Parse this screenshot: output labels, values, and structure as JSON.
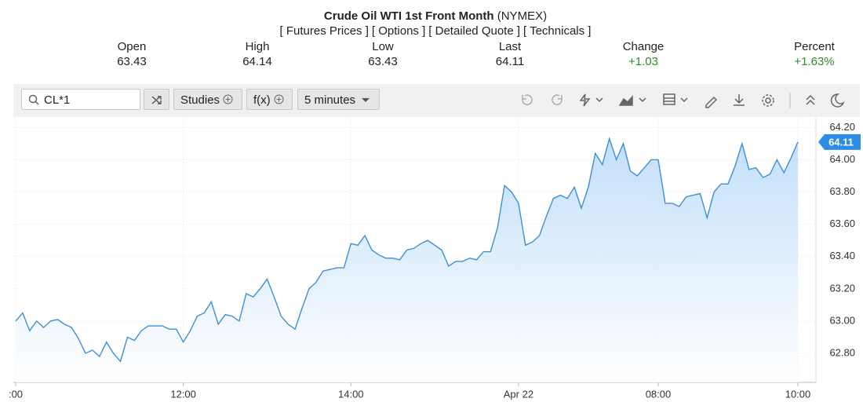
{
  "header": {
    "title": "Crude Oil WTI 1st Front Month",
    "exchange": "(NYMEX)",
    "links": [
      "[ Futures Prices ]",
      "[ Options ]",
      "[ Detailed Quote ]",
      "[ Technicals ]"
    ],
    "quote": [
      {
        "label": "Open",
        "value": "63.43"
      },
      {
        "label": "High",
        "value": "64.14"
      },
      {
        "label": "Low",
        "value": "63.43"
      },
      {
        "label": "Last",
        "value": "64.11"
      },
      {
        "label": "Change",
        "value": "+1.03"
      },
      {
        "label": "Percent",
        "value": "+1.63%"
      }
    ]
  },
  "toolbar": {
    "symbol": "CL*1",
    "studies": "Studies",
    "fx": "f(x)",
    "interval": "5 minutes"
  },
  "chart_data": {
    "type": "area",
    "color": "#3d8fd6",
    "categories": [
      ":00",
      null,
      null,
      null,
      null,
      null,
      null,
      null,
      null,
      null,
      null,
      null,
      null,
      null,
      null,
      null,
      null,
      null,
      null,
      null,
      null,
      null,
      null,
      null,
      "12:00",
      null,
      null,
      null,
      null,
      null,
      null,
      null,
      null,
      null,
      null,
      null,
      null,
      null,
      null,
      null,
      null,
      null,
      null,
      null,
      null,
      null,
      null,
      null,
      "14:00",
      null,
      null,
      null,
      null,
      null,
      null,
      null,
      null,
      null,
      null,
      null,
      null,
      null,
      null,
      null,
      null,
      null,
      null,
      null,
      null,
      null,
      null,
      null,
      "Apr 22",
      null,
      null,
      null,
      null,
      null,
      null,
      null,
      null,
      null,
      null,
      null,
      null,
      null,
      null,
      null,
      null,
      null,
      null,
      null,
      "08:00",
      null,
      null,
      null,
      null,
      null,
      null,
      null,
      null,
      null,
      null,
      null,
      null,
      null,
      null,
      null,
      null,
      null,
      null,
      null,
      "10:00"
    ],
    "values": [
      63.0,
      63.05,
      62.94,
      63.0,
      62.96,
      63.0,
      63.01,
      62.98,
      62.96,
      62.89,
      62.8,
      62.82,
      62.78,
      62.87,
      62.8,
      62.75,
      62.9,
      62.88,
      62.94,
      62.97,
      62.97,
      62.97,
      62.95,
      62.95,
      62.87,
      62.94,
      63.03,
      63.05,
      63.12,
      62.98,
      63.04,
      63.03,
      63.0,
      63.17,
      63.15,
      63.2,
      63.26,
      63.15,
      63.03,
      62.98,
      62.95,
      63.08,
      63.2,
      63.24,
      63.31,
      63.32,
      63.33,
      63.33,
      63.48,
      63.47,
      63.53,
      63.44,
      63.41,
      63.39,
      63.39,
      63.38,
      63.44,
      63.45,
      63.48,
      63.5,
      63.47,
      63.44,
      63.34,
      63.37,
      63.37,
      63.39,
      63.38,
      63.43,
      63.43,
      63.58,
      63.84,
      63.8,
      63.73,
      63.47,
      63.49,
      63.53,
      63.65,
      63.76,
      63.78,
      63.76,
      63.83,
      63.7,
      63.83,
      64.04,
      63.97,
      64.13,
      64.0,
      64.1,
      63.93,
      63.9,
      63.95,
      64.0,
      64.0,
      63.73,
      63.73,
      63.71,
      63.77,
      63.78,
      63.79,
      63.64,
      63.8,
      63.85,
      63.85,
      63.96,
      64.1,
      63.94,
      63.95,
      63.89,
      63.91,
      64.0,
      63.92,
      64.01,
      64.11
    ],
    "ylim": [
      62.62,
      64.26
    ],
    "yticks": [
      {
        "value": 62.8,
        "label": "62.80"
      },
      {
        "value": 63.0,
        "label": "63.00"
      },
      {
        "value": 63.2,
        "label": "63.20"
      },
      {
        "value": 63.4,
        "label": "63.40"
      },
      {
        "value": 63.6,
        "label": "63.60"
      },
      {
        "value": 63.8,
        "label": "63.80"
      },
      {
        "value": 64.0,
        "label": "64.00"
      },
      {
        "value": 64.2,
        "label": "64.20"
      }
    ],
    "grid": true
  }
}
